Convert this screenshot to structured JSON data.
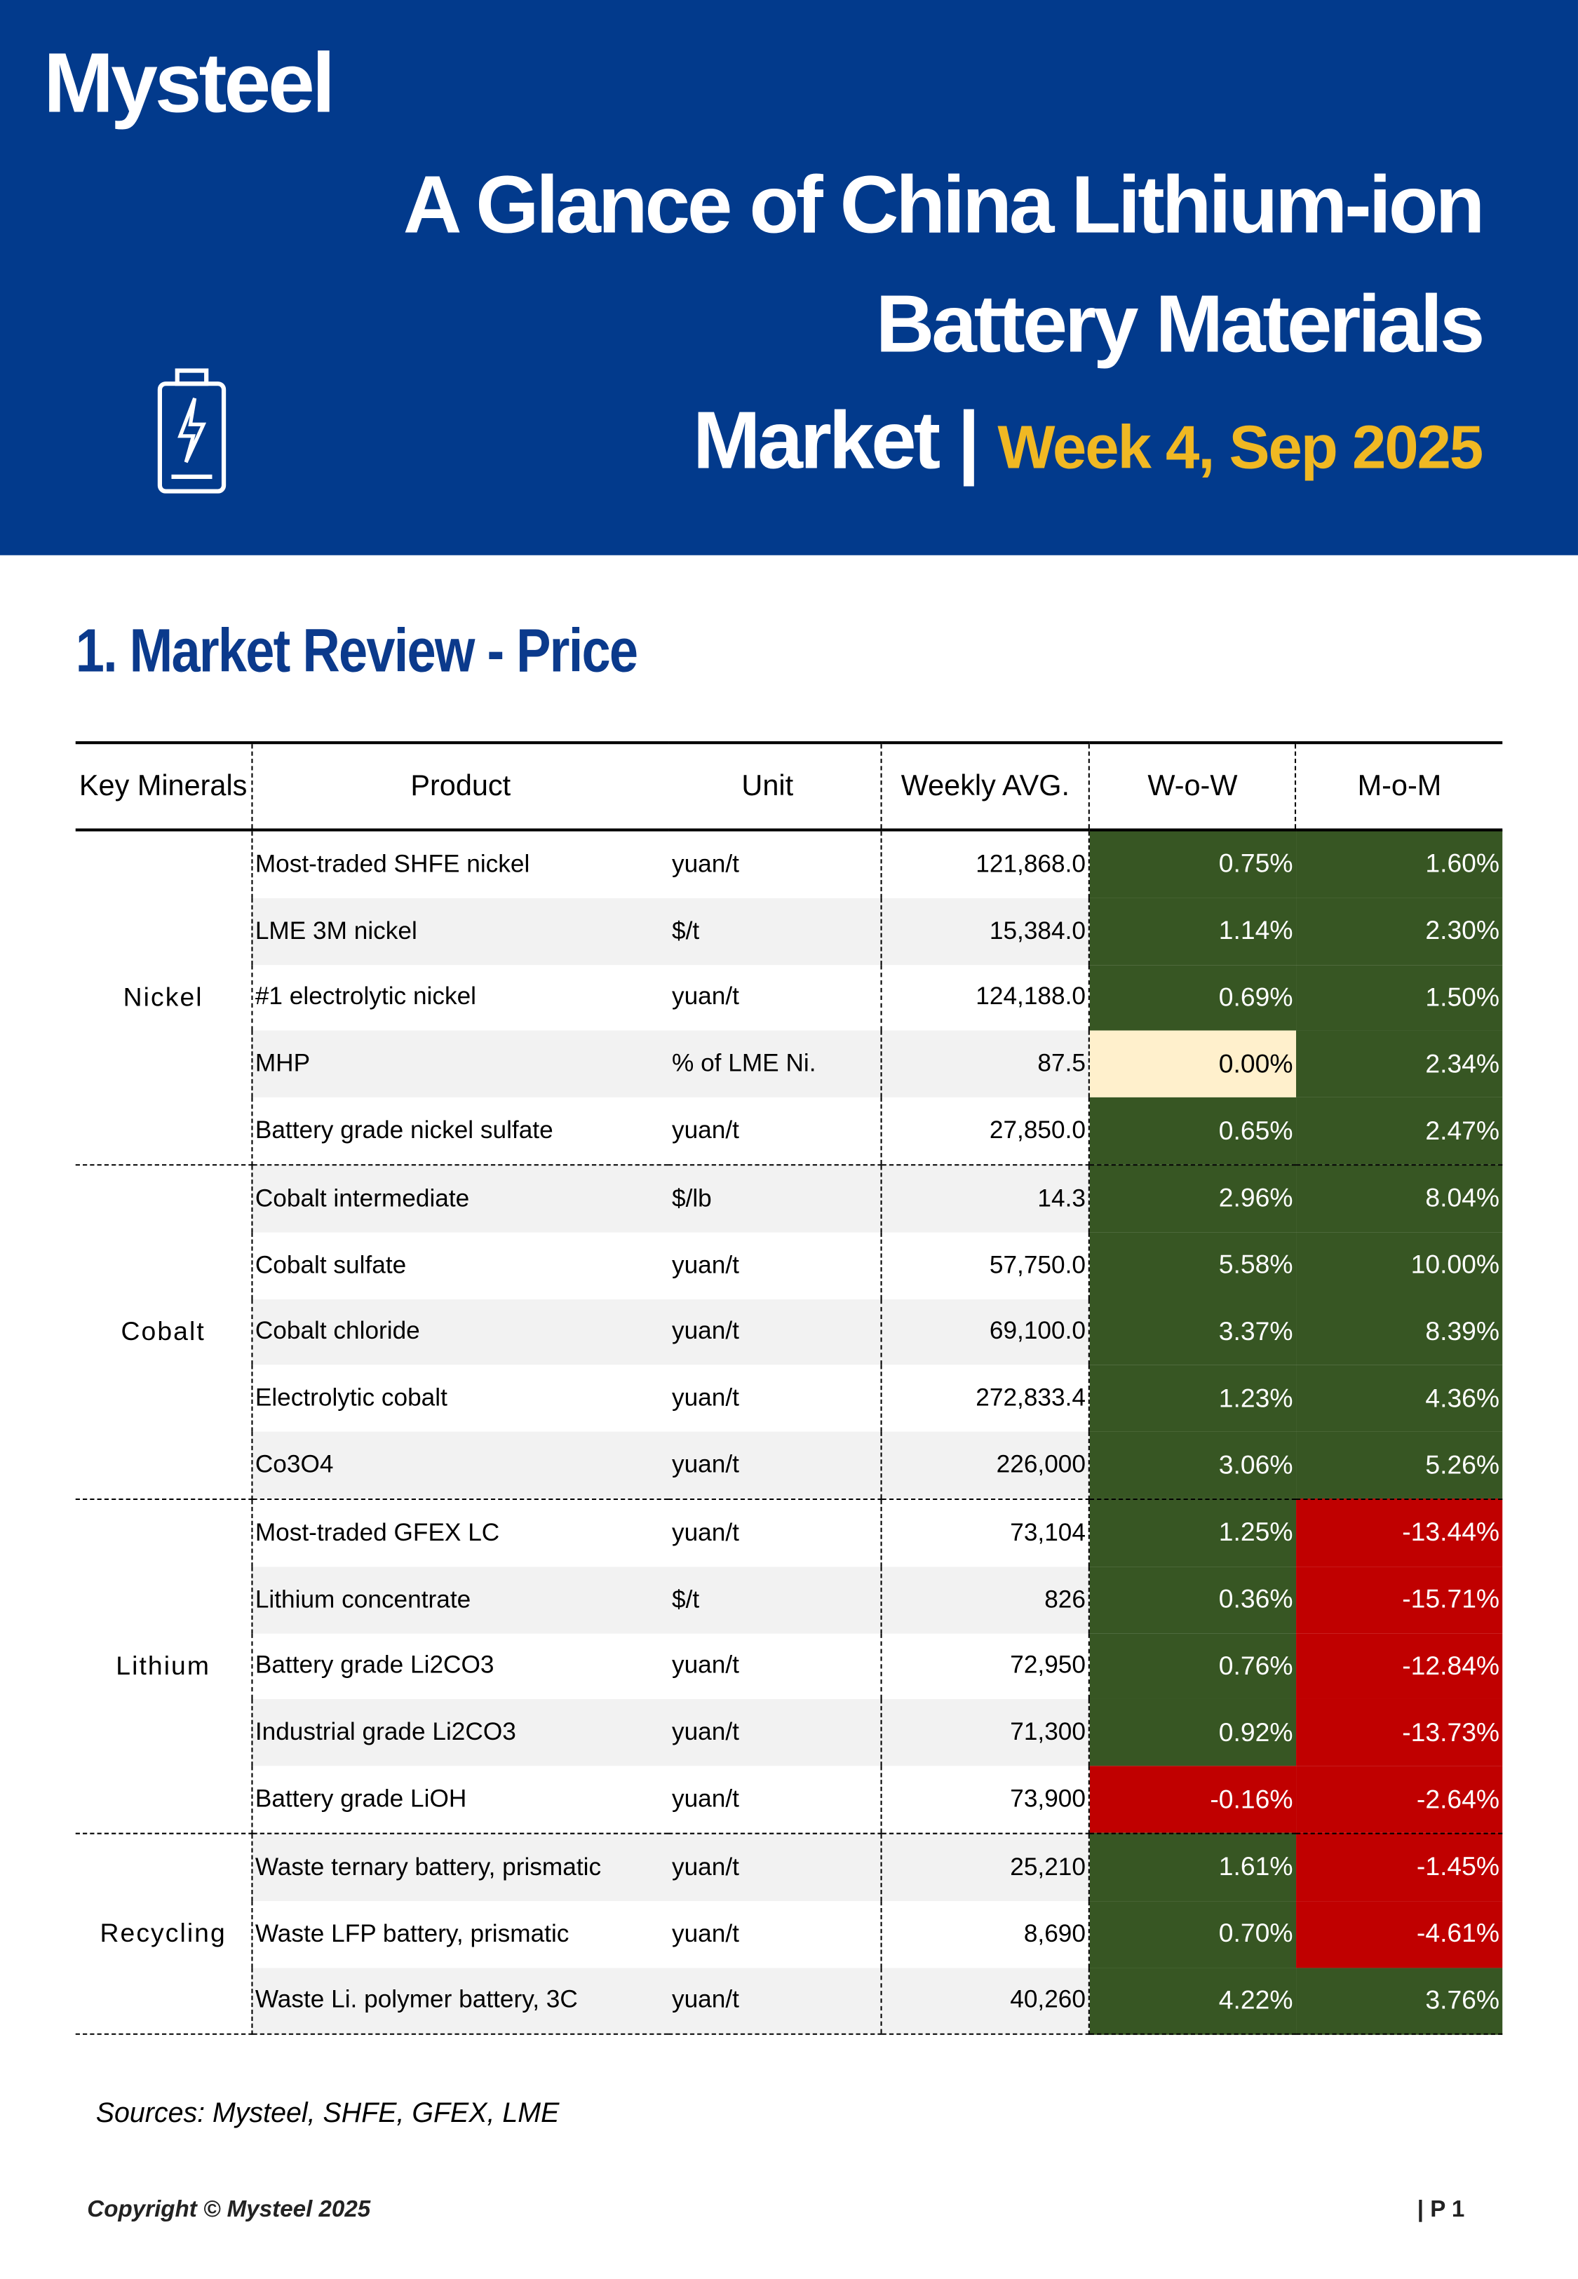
{
  "header": {
    "logo": "Mysteel",
    "title_lines": [
      "A Glance of China Lithium-ion",
      "Battery Materials",
      "Market |"
    ],
    "week": "Week 4, Sep 2025"
  },
  "section_title": "1. Market Review - Price",
  "table": {
    "header": [
      "Key Minerals",
      "Product",
      "Unit",
      "Weekly AVG.",
      "W-o-W",
      "M-o-M"
    ],
    "groups": [
      {
        "name": "Nickel",
        "rows": [
          [
            "Most-traded SHFE nickel",
            "yuan/t",
            "121,868.0",
            "0.75%",
            "1.60%"
          ],
          [
            "LME 3M nickel",
            "$/t",
            "15,384.0",
            "1.14%",
            "2.30%"
          ],
          [
            "#1 electrolytic nickel",
            "yuan/t",
            "124,188.0",
            "0.69%",
            "1.50%"
          ],
          [
            "MHP",
            "% of LME Ni.",
            "87.5",
            "0.00%",
            "2.34%"
          ],
          [
            "Battery grade nickel sulfate",
            "yuan/t",
            "27,850.0",
            "0.65%",
            "2.47%"
          ]
        ]
      },
      {
        "name": "Cobalt",
        "rows": [
          [
            "Cobalt intermediate",
            "$/lb",
            "14.3",
            "2.96%",
            "8.04%"
          ],
          [
            "Cobalt sulfate",
            "yuan/t",
            "57,750.0",
            "5.58%",
            "10.00%"
          ],
          [
            "Cobalt chloride",
            "yuan/t",
            "69,100.0",
            "3.37%",
            "8.39%"
          ],
          [
            "Electrolytic cobalt",
            "yuan/t",
            "272,833.4",
            "1.23%",
            "4.36%"
          ],
          [
            "Co3O4",
            "yuan/t",
            "226,000",
            "3.06%",
            "5.26%"
          ]
        ]
      },
      {
        "name": "Lithium",
        "rows": [
          [
            "Most-traded GFEX LC",
            "yuan/t",
            "73,104",
            "1.25%",
            "-13.44%"
          ],
          [
            "Lithium concentrate",
            "$/t",
            "826",
            "0.36%",
            "-15.71%"
          ],
          [
            "Battery grade Li2CO3",
            "yuan/t",
            "72,950",
            "0.76%",
            "-12.84%"
          ],
          [
            "Industrial grade Li2CO3",
            "yuan/t",
            "71,300",
            "0.92%",
            "-13.73%"
          ],
          [
            "Battery grade LiOH",
            "yuan/t",
            "73,900",
            "-0.16%",
            "-2.64%"
          ]
        ]
      },
      {
        "name": "Recycling",
        "rows": [
          [
            "Waste ternary battery, prismatic",
            "yuan/t",
            "25,210",
            "1.61%",
            "-1.45%"
          ],
          [
            "Waste LFP battery, prismatic",
            "yuan/t",
            "8,690",
            "0.70%",
            "-4.61%"
          ],
          [
            "Waste Li. polymer battery, 3C",
            "yuan/t",
            "40,260",
            "4.22%",
            "3.76%"
          ]
        ]
      }
    ]
  },
  "sources": "Sources: Mysteel, SHFE, GFEX, LME",
  "footer": {
    "copyright": "Copyright © Mysteel 2025",
    "page": "| P 1"
  }
}
